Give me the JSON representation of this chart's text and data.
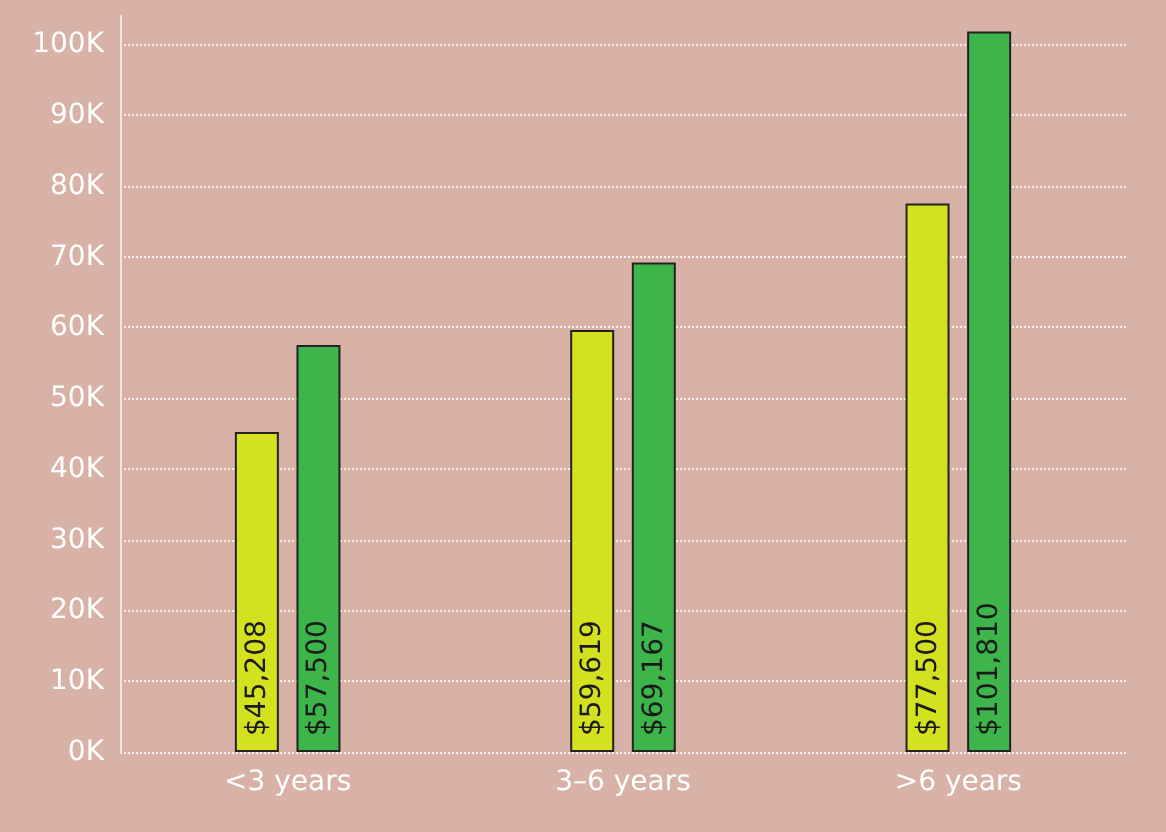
{
  "chart_data": {
    "type": "bar",
    "categories": [
      "<3 years",
      "3–6 years",
      ">6 years"
    ],
    "series": [
      {
        "color": "#d4e11e",
        "values": [
          45208,
          59619,
          77500
        ],
        "value_labels": [
          "$45,208",
          "$59,619",
          "$77,500"
        ]
      },
      {
        "color": "#3db54a",
        "values": [
          57500,
          69167,
          101810
        ],
        "value_labels": [
          "$57,500",
          "$69,167",
          "$101,810"
        ]
      }
    ],
    "ylim": [
      0,
      104000
    ],
    "yticks": [
      {
        "value": 0,
        "label": "0K"
      },
      {
        "value": 10000,
        "label": "10K"
      },
      {
        "value": 20000,
        "label": "20K"
      },
      {
        "value": 30000,
        "label": "30K"
      },
      {
        "value": 40000,
        "label": "40K"
      },
      {
        "value": 50000,
        "label": "50K"
      },
      {
        "value": 60000,
        "label": "60K"
      },
      {
        "value": 70000,
        "label": "70K"
      },
      {
        "value": 80000,
        "label": "80K"
      },
      {
        "value": 90000,
        "label": "90K"
      },
      {
        "value": 100000,
        "label": "100K"
      }
    ],
    "grid": "y"
  }
}
